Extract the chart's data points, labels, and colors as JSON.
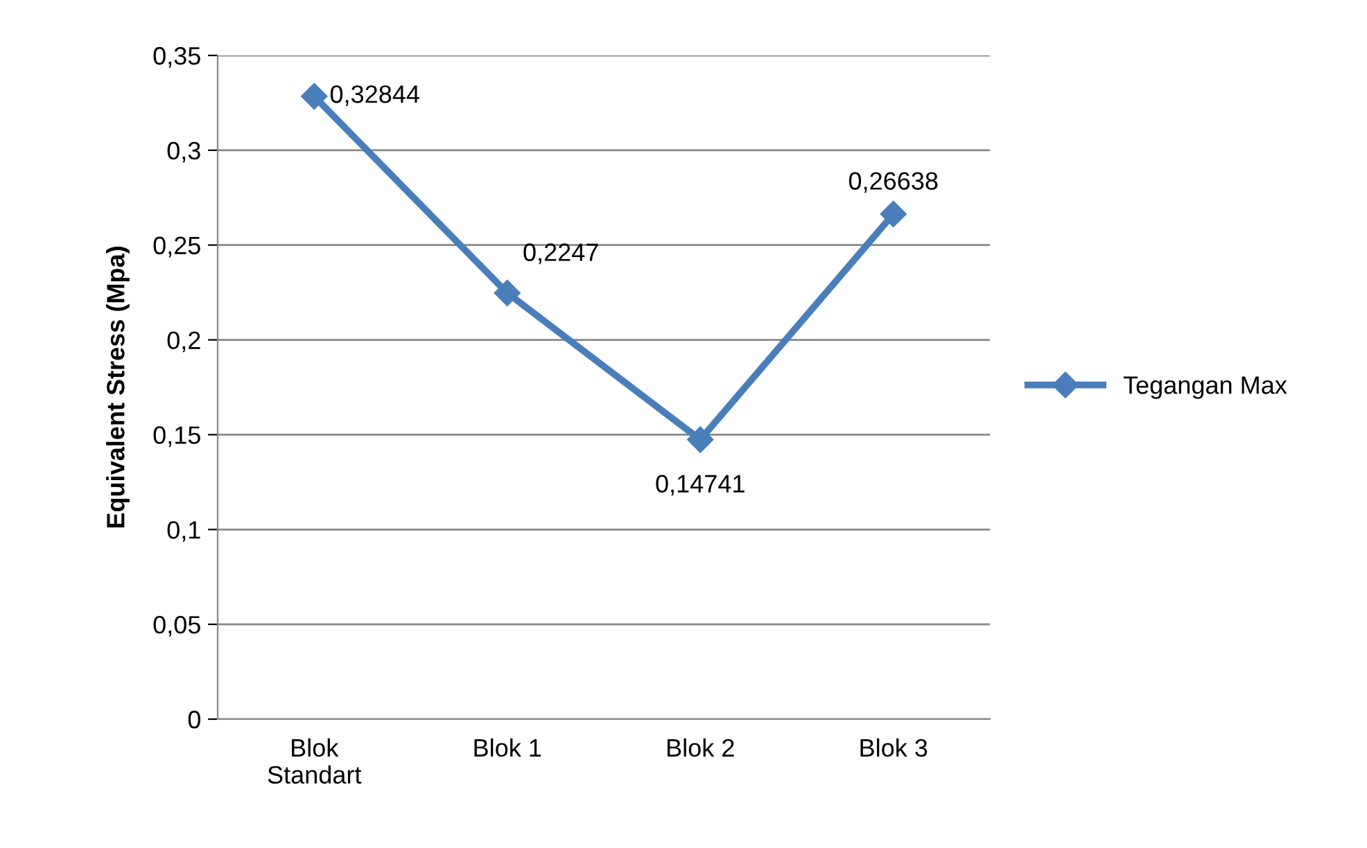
{
  "chart_data": {
    "type": "line",
    "ylabel": "Equivalent Stress (Mpa)",
    "categories": [
      "Blok\nStandart",
      "Blok 1",
      "Blok 2",
      "Blok 3"
    ],
    "series": [
      {
        "name": "Tegangan Max",
        "color": "#4a7ebb",
        "values": [
          0.32844,
          0.2247,
          0.14741,
          0.26638
        ],
        "value_labels": [
          "0,32844",
          "0,2247",
          "0,14741",
          "0,26638"
        ]
      }
    ],
    "ylim": [
      0,
      0.35
    ],
    "yticks": [
      {
        "value": 0,
        "label": "0"
      },
      {
        "value": 0.05,
        "label": "0,05"
      },
      {
        "value": 0.1,
        "label": "0,1"
      },
      {
        "value": 0.15,
        "label": "0,15"
      },
      {
        "value": 0.2,
        "label": "0,2"
      },
      {
        "value": 0.25,
        "label": "0,25"
      },
      {
        "value": 0.3,
        "label": "0,3"
      },
      {
        "value": 0.35,
        "label": "0,35"
      }
    ],
    "grid": "y",
    "legend": "right",
    "marker": "diamond",
    "line_style": "solid"
  }
}
